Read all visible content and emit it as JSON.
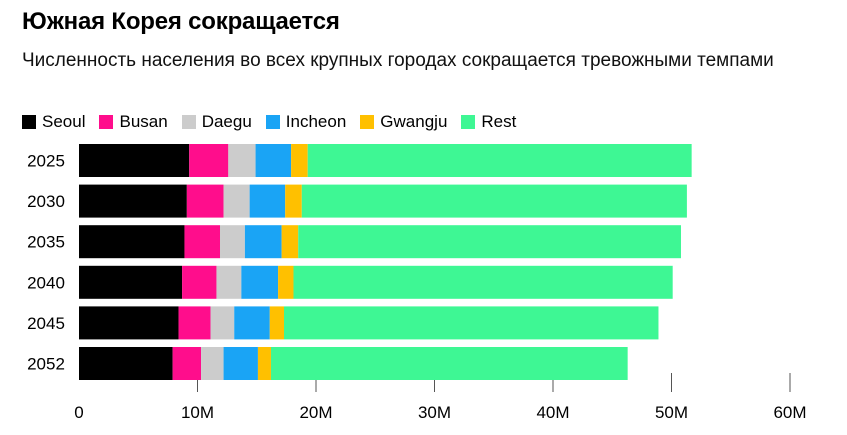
{
  "header": {
    "title": "Южная Корея сокращается",
    "subtitle": "Численность населения во всех крупных городах сокращается тревожными темпами"
  },
  "chart_data": {
    "type": "bar",
    "orientation": "horizontal",
    "stacked": true,
    "categories": [
      "2025",
      "2030",
      "2035",
      "2040",
      "2045",
      "2052"
    ],
    "series": [
      {
        "name": "Seoul",
        "color": "#000000",
        "values": [
          9.3,
          9.1,
          8.9,
          8.7,
          8.4,
          7.9
        ]
      },
      {
        "name": "Busan",
        "color": "#ff0d8c",
        "values": [
          3.3,
          3.1,
          3.0,
          2.9,
          2.7,
          2.4
        ]
      },
      {
        "name": "Daegu",
        "color": "#cccccc",
        "values": [
          2.3,
          2.2,
          2.1,
          2.1,
          2.0,
          1.9
        ]
      },
      {
        "name": "Incheon",
        "color": "#1aa4f5",
        "values": [
          3.0,
          3.0,
          3.1,
          3.1,
          3.0,
          2.9
        ]
      },
      {
        "name": "Gwangju",
        "color": "#ffc000",
        "values": [
          1.4,
          1.4,
          1.4,
          1.3,
          1.2,
          1.1
        ]
      },
      {
        "name": "Rest",
        "color": "#3ef794",
        "values": [
          32.4,
          32.5,
          32.3,
          32.0,
          31.6,
          30.1
        ]
      }
    ],
    "xlim": [
      0,
      60
    ],
    "x_ticks": [
      0,
      10,
      20,
      30,
      40,
      50,
      60
    ],
    "x_tick_labels": [
      "0",
      "10M",
      "20M",
      "30M",
      "40M",
      "50M",
      "60M"
    ],
    "grid": true,
    "legend_position": "top-left"
  }
}
